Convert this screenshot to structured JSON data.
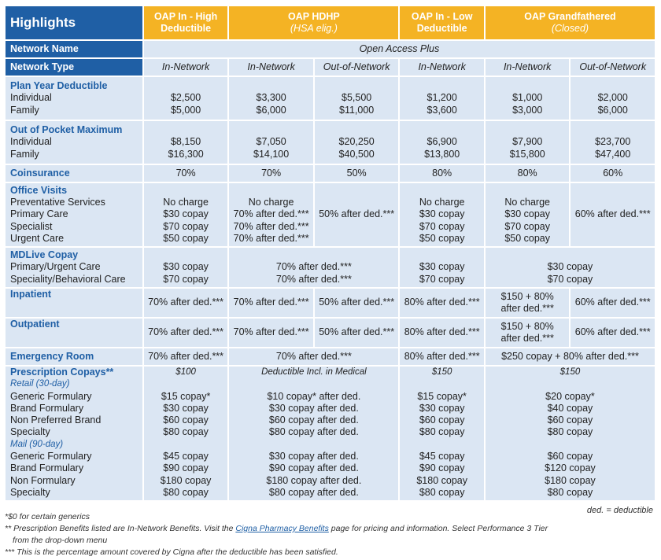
{
  "header": {
    "highlights": "Highlights",
    "col1": [
      "OAP In - High",
      "Deductible"
    ],
    "col2": [
      "OAP HDHP",
      "(HSA elig.)"
    ],
    "col3": [
      "OAP In - Low",
      "Deductible"
    ],
    "col4": [
      "OAP Grandfathered",
      "(Closed)"
    ]
  },
  "network_name": {
    "label": "Network Name",
    "value": "Open Access Plus"
  },
  "network_type": {
    "label": "Network Type",
    "cols": [
      "In-Network",
      "In-Network",
      "Out-of-Network",
      "In-Network",
      "In-Network",
      "Out-of-Network"
    ]
  },
  "deductible": {
    "title": "Plan Year Deductible",
    "rows": [
      "Individual",
      "Family"
    ],
    "c1": [
      "$2,500",
      "$5,000"
    ],
    "c2": [
      "$3,300",
      "$6,000"
    ],
    "c3": [
      "$5,500",
      "$11,000"
    ],
    "c4": [
      "$1,200",
      "$3,600"
    ],
    "c5": [
      "$1,000",
      "$3,000"
    ],
    "c6": [
      "$2,000",
      "$6,000"
    ]
  },
  "oop": {
    "title": "Out of Pocket Maximum",
    "rows": [
      "Individual",
      "Family"
    ],
    "c1": [
      "$8,150",
      "$16,300"
    ],
    "c2": [
      "$7,050",
      "$14,100"
    ],
    "c3": [
      "$20,250",
      "$40,500"
    ],
    "c4": [
      "$6,900",
      "$13,800"
    ],
    "c5": [
      "$7,900",
      "$15,800"
    ],
    "c6": [
      "$23,700",
      "$47,400"
    ]
  },
  "coinsurance": {
    "title": "Coinsurance",
    "c1": "70%",
    "c2": "70%",
    "c3": "50%",
    "c4": "80%",
    "c5": "80%",
    "c6": "60%"
  },
  "office": {
    "title": "Office Visits",
    "rows": [
      "Preventative Services",
      "Primary Care",
      "Specialist",
      "Urgent Care"
    ],
    "c1": [
      "No charge",
      "$30 copay",
      "$70 copay",
      "$50 copay"
    ],
    "c2": [
      "No charge",
      "70% after ded.***",
      "70% after ded.***",
      "70% after ded.***"
    ],
    "c3": "50% after ded.***",
    "c4": [
      "No charge",
      "$30 copay",
      "$70 copay",
      "$50 copay"
    ],
    "c5": [
      "No charge",
      "$30 copay",
      "$70 copay",
      "$50 copay"
    ],
    "c6": "60% after ded.***"
  },
  "mdlive": {
    "title": "MDLive Copay",
    "rows": [
      "Primary/Urgent Care",
      "Speciality/Behavioral Care"
    ],
    "c1": [
      "$30 copay",
      "$70 copay"
    ],
    "c2": [
      "70% after ded.***",
      "70% after ded.***"
    ],
    "c4": [
      "$30 copay",
      "$70 copay"
    ],
    "c5": [
      "$30 copay",
      "$70 copay"
    ]
  },
  "inpatient": {
    "title": "Inpatient",
    "c1": "70% after ded.***",
    "c2": "70% after ded.***",
    "c3": "50% after ded.***",
    "c4": "80% after ded.***",
    "c5": [
      "$150 + 80%",
      "after ded.***"
    ],
    "c6": "60% after ded.***"
  },
  "outpatient": {
    "title": "Outpatient",
    "c1": "70% after ded.***",
    "c2": "70% after ded.***",
    "c3": "50% after ded.***",
    "c4": "80% after ded.***",
    "c5": [
      "$150 + 80%",
      "after ded.***"
    ],
    "c6": "60% after ded.***"
  },
  "er": {
    "title": "Emergency Room",
    "c1": "70% after ded.***",
    "c2": "70% after ded.***",
    "c4": "80% after ded.***",
    "c5": "$250 copay + 80% after ded.***"
  },
  "rx": {
    "title": "Prescription Copays**",
    "retail": "Retail (30-day)",
    "mail": "Mail (90-day)",
    "retail_rows": [
      "Generic Formulary",
      "Brand Formulary",
      "Non Preferred Brand",
      "Specialty"
    ],
    "mail_rows": [
      "Generic Formulary",
      "Brand Formulary",
      "Non Formulary",
      "Specialty"
    ],
    "c1_head": "$100",
    "c2_head": "Deductible Incl. in Medical",
    "c4_head": "$150",
    "c5_head": "$150",
    "c1_retail": [
      "$15 copay*",
      "$30 copay",
      "$60 copay",
      "$80 copay"
    ],
    "c1_mail": [
      "$45 copay",
      "$90 copay",
      "$180 copay",
      "$80 copay"
    ],
    "c2_retail": [
      "$10 copay* after ded.",
      "$30 copay after ded.",
      "$60 copay after ded.",
      "$80 copay after ded."
    ],
    "c2_mail": [
      "$30 copay after ded.",
      "$90 copay after ded.",
      "$180 copay after ded.",
      "$80 copay after ded."
    ],
    "c4_retail": [
      "$15 copay*",
      "$30 copay",
      "$60 copay",
      "$80 copay"
    ],
    "c4_mail": [
      "$45 copay",
      "$90 copay",
      "$180 copay",
      "$80 copay"
    ],
    "c5_retail": [
      "$20 copay*",
      "$40 copay",
      "$60 copay",
      "$80 copay"
    ],
    "c5_mail": [
      "$60 copay",
      "$120 copay",
      "$180 copay",
      "$80 copay"
    ]
  },
  "footnotes": {
    "f1": "*$0 for certain generics",
    "f2a": "** Prescription Benefits listed are In-Network Benefits. Visit the ",
    "f2link": "Cigna Pharmacy Benefits",
    "f2b": " page for pricing and information. Select Performance 3 Tier",
    "f2c": "from the drop-down menu",
    "f3": "*** This is the percentage amount covered by Cigna after the deductible has been satisfied.",
    "legend": "ded. = deductible"
  }
}
